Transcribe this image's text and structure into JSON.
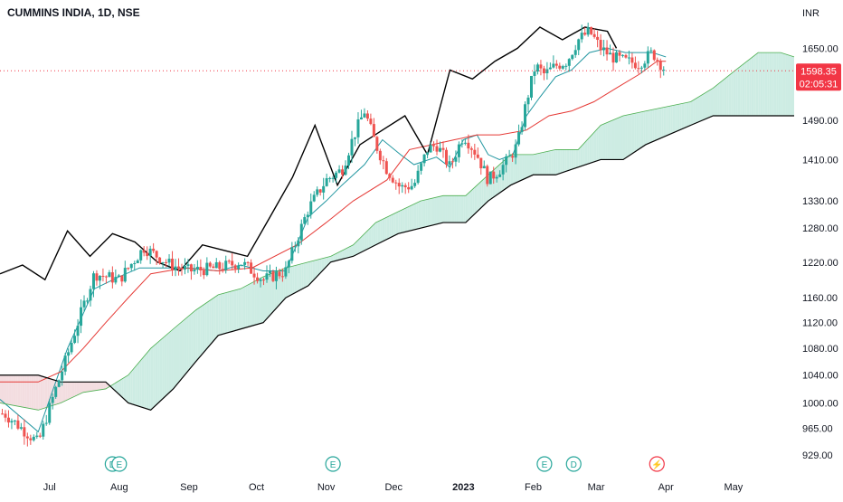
{
  "header": {
    "symbol_title": "CUMMINS INDIA, 1D, NSE"
  },
  "currency": "INR",
  "price_tag": {
    "price": "1598.35",
    "countdown": "02:05:31",
    "color": "#f23645"
  },
  "colors": {
    "up": "#26a69a",
    "down": "#ef5350",
    "conversion_line": "#2196a0",
    "base_line": "#e53935",
    "lagging_span": "#000000",
    "cloud_bull": "#cdece3",
    "cloud_bear": "#f3dde0",
    "event_marker": "#26a69a",
    "dividend_split_marker": "#f23645"
  },
  "chart_data": {
    "type": "line",
    "title": "CUMMINS INDIA, 1D, NSE",
    "indicator": "Ichimoku Cloud",
    "y_axis_ticks": [
      929,
      965,
      1000,
      1040,
      1080,
      1120,
      1160,
      1220,
      1280,
      1330,
      1410,
      1490,
      1650
    ],
    "y_axis_tick_labels": [
      "929.00",
      "965.00",
      "1000.00",
      "1040.00",
      "1080.00",
      "1120.00",
      "1160.00",
      "1220.00",
      "1280.00",
      "1330.00",
      "1410.00",
      "1490.00",
      "1650.00"
    ],
    "ylim": [
      915,
      1700
    ],
    "y_scale": "log",
    "x_axis_labels": [
      "Jul",
      "Aug",
      "Sep",
      "Oct",
      "Nov",
      "Dec",
      "2023",
      "Feb",
      "Mar",
      "Apr",
      "May"
    ],
    "x_axis_label_positions_days": [
      0,
      31,
      62,
      92,
      123,
      153,
      184,
      215,
      243,
      274,
      304
    ],
    "x_range_days": [
      -22,
      331
    ],
    "last_price": 1598.35,
    "grid": false,
    "series": [
      {
        "role": "price",
        "x": [
          -20,
          -5,
          8,
          20,
          31,
          42,
          54,
          62,
          75,
          85,
          95,
          105,
          115,
          123,
          130,
          135,
          140,
          145,
          150,
          156,
          162,
          168,
          172,
          178,
          184,
          190,
          195,
          200,
          204,
          208,
          212,
          216,
          220,
          225,
          230,
          235,
          240,
          245,
          250,
          256,
          262,
          268,
          274
        ],
        "values": [
          985,
          945,
          1070,
          1200,
          1190,
          1245,
          1215,
          1205,
          1210,
          1220,
          1190,
          1205,
          1315,
          1370,
          1390,
          1455,
          1510,
          1440,
          1390,
          1355,
          1360,
          1430,
          1440,
          1395,
          1460,
          1420,
          1370,
          1390,
          1410,
          1440,
          1530,
          1610,
          1590,
          1610,
          1620,
          1670,
          1690,
          1650,
          1630,
          1620,
          1615,
          1640,
          1598
        ]
      },
      {
        "name": "",
        "role": "conversion_line",
        "x": [
          -22,
          -5,
          8,
          20,
          31,
          40,
          54,
          62,
          75,
          85,
          95,
          105,
          115,
          123,
          130,
          140,
          148,
          156,
          162,
          172,
          178,
          184,
          190,
          195,
          200,
          206,
          212,
          218,
          225,
          232,
          240,
          248,
          256,
          262,
          268,
          274
        ],
        "values": [
          1005,
          960,
          1080,
          1175,
          1195,
          1210,
          1210,
          1210,
          1205,
          1215,
          1205,
          1205,
          1300,
          1330,
          1360,
          1400,
          1450,
          1420,
          1400,
          1415,
          1395,
          1450,
          1460,
          1420,
          1410,
          1420,
          1500,
          1540,
          1585,
          1600,
          1640,
          1650,
          1640,
          1640,
          1640,
          1630
        ]
      },
      {
        "name": "",
        "role": "base_line",
        "x": [
          -22,
          -5,
          5,
          15,
          25,
          35,
          45,
          60,
          75,
          90,
          110,
          123,
          135,
          150,
          160,
          170,
          180,
          190,
          200,
          212,
          222,
          232,
          242,
          252,
          262,
          270,
          274
        ],
        "values": [
          1030,
          1030,
          1045,
          1080,
          1120,
          1160,
          1200,
          1210,
          1205,
          1210,
          1250,
          1290,
          1330,
          1370,
          1430,
          1440,
          1450,
          1460,
          1460,
          1470,
          1500,
          1510,
          1530,
          1560,
          1590,
          1620,
          1620
        ]
      },
      {
        "name": "",
        "role": "lagging_span",
        "x": [
          -22,
          -12,
          -2,
          8,
          18,
          28,
          38,
          48,
          58,
          68,
          78,
          88,
          98,
          108,
          118,
          128,
          138,
          148,
          158,
          168,
          178,
          188,
          198,
          208,
          218,
          228,
          238,
          248,
          252
        ],
        "values": [
          1200,
          1215,
          1190,
          1275,
          1230,
          1270,
          1255,
          1220,
          1205,
          1250,
          1240,
          1230,
          1300,
          1375,
          1480,
          1360,
          1440,
          1470,
          1500,
          1420,
          1600,
          1580,
          1620,
          1650,
          1700,
          1670,
          1700,
          1690,
          1650
        ]
      },
      {
        "name": "",
        "role": "leading_span_a",
        "x": [
          -22,
          -5,
          5,
          15,
          25,
          35,
          45,
          55,
          65,
          75,
          85,
          95,
          105,
          115,
          125,
          135,
          145,
          155,
          165,
          175,
          185,
          195,
          205,
          215,
          225,
          235,
          245,
          255,
          265,
          275,
          285,
          295,
          305,
          315,
          325,
          331
        ],
        "values": [
          1000,
          990,
          1000,
          1015,
          1020,
          1040,
          1080,
          1110,
          1140,
          1165,
          1175,
          1195,
          1210,
          1220,
          1230,
          1250,
          1290,
          1310,
          1330,
          1340,
          1340,
          1380,
          1420,
          1420,
          1430,
          1430,
          1480,
          1500,
          1510,
          1520,
          1530,
          1560,
          1600,
          1640,
          1640,
          1630
        ]
      },
      {
        "name": "",
        "role": "leading_span_b",
        "x": [
          -22,
          -5,
          5,
          15,
          25,
          35,
          45,
          55,
          65,
          75,
          85,
          95,
          105,
          115,
          125,
          135,
          145,
          155,
          165,
          175,
          185,
          195,
          205,
          215,
          225,
          235,
          245,
          255,
          265,
          275,
          285,
          295,
          305,
          315,
          325,
          331
        ],
        "values": [
          1040,
          1040,
          1030,
          1030,
          1030,
          1000,
          990,
          1020,
          1060,
          1100,
          1110,
          1120,
          1160,
          1180,
          1220,
          1230,
          1250,
          1270,
          1280,
          1290,
          1290,
          1330,
          1360,
          1380,
          1380,
          1395,
          1410,
          1410,
          1440,
          1460,
          1480,
          1500,
          1500,
          1500,
          1500,
          1500
        ]
      }
    ],
    "events": [
      {
        "label": "D",
        "x": 28
      },
      {
        "label": "E",
        "x": 31
      },
      {
        "label": "E",
        "x": 126
      },
      {
        "label": "E",
        "x": 220
      },
      {
        "label": "D",
        "x": 233
      },
      {
        "label": "⚡",
        "x": 270
      }
    ]
  }
}
